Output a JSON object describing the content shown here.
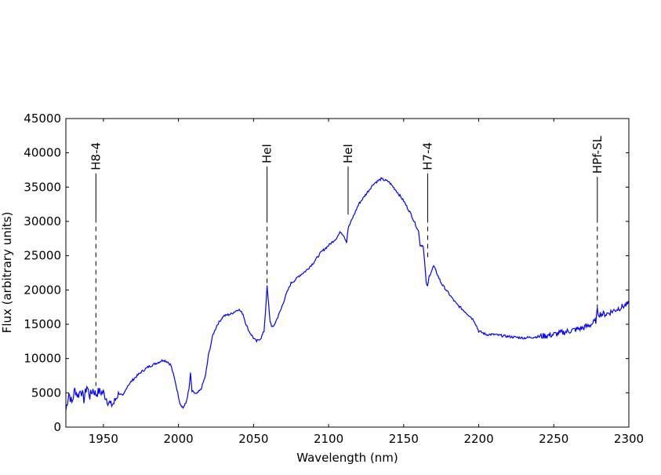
{
  "chart_data": {
    "type": "line",
    "title": "",
    "xlabel": "Wavelength (nm)",
    "ylabel": "Flux (arbitrary units)",
    "xlim": [
      1925,
      2300
    ],
    "ylim": [
      0,
      45000
    ],
    "xticks": [
      1950,
      2000,
      2050,
      2100,
      2150,
      2200,
      2250,
      2300
    ],
    "yticks": [
      0,
      5000,
      10000,
      15000,
      20000,
      25000,
      30000,
      35000,
      40000,
      45000
    ],
    "grid": false,
    "line_color": "#0000ff",
    "annotations": [
      {
        "label": "H8-4",
        "x": 1945,
        "y_line_top": 37000,
        "y_dash_top": 30500,
        "y_bottom": 6000
      },
      {
        "label": "HeI",
        "x": 2059,
        "y_line_top": 38000,
        "y_dash_top": 30500,
        "y_bottom": 21000
      },
      {
        "label": "HeI",
        "x": 2113,
        "y_line_top": 38000,
        "y_dash_top": 31000,
        "y_bottom": 31000
      },
      {
        "label": "H7-4",
        "x": 2166,
        "y_line_top": 37000,
        "y_dash_top": 30500,
        "y_bottom": 24500
      },
      {
        "label": "HPf-SL",
        "x": 2279,
        "y_line_top": 36500,
        "y_dash_top": 30500,
        "y_bottom": 17000
      }
    ],
    "series": [
      {
        "x": [
          1925,
          1927,
          1929,
          1931,
          1933,
          1935,
          1937,
          1939,
          1941,
          1943,
          1945,
          1947,
          1950,
          1953,
          1955,
          1957,
          1960,
          1963,
          1966,
          1970,
          1975,
          1980,
          1985,
          1990,
          1993,
          1995,
          1998,
          2001,
          2003,
          2005,
          2007,
          2008,
          2009,
          2012,
          2015,
          2018,
          2020,
          2023,
          2026,
          2030,
          2035,
          2040,
          2043,
          2045,
          2047,
          2050,
          2052,
          2055,
          2057,
          2058,
          2059,
          2060,
          2061,
          2062,
          2063,
          2065,
          2068,
          2072,
          2075,
          2078,
          2080,
          2085,
          2090,
          2095,
          2100,
          2105,
          2108,
          2110,
          2112,
          2113,
          2115,
          2118,
          2120,
          2125,
          2130,
          2135,
          2140,
          2145,
          2150,
          2155,
          2158,
          2160,
          2161,
          2163,
          2164,
          2165,
          2166,
          2167,
          2170,
          2175,
          2180,
          2185,
          2190,
          2195,
          2197,
          2200,
          2205,
          2210,
          2220,
          2230,
          2240,
          2250,
          2260,
          2270,
          2275,
          2278,
          2279,
          2280,
          2285,
          2290,
          2295,
          2300
        ],
        "y": [
          2500,
          5000,
          3500,
          5500,
          4500,
          5500,
          4000,
          6000,
          4500,
          5500,
          4800,
          5200,
          5000,
          3800,
          3200,
          3500,
          5000,
          4500,
          6000,
          7000,
          8000,
          8800,
          9300,
          9800,
          9500,
          9000,
          6500,
          3500,
          2800,
          3500,
          5500,
          7800,
          5200,
          4800,
          5500,
          7500,
          10500,
          13500,
          15000,
          16200,
          16500,
          17200,
          16500,
          15000,
          14000,
          13000,
          12500,
          13000,
          14000,
          17000,
          20500,
          18000,
          15500,
          14800,
          14500,
          15500,
          17000,
          19500,
          21000,
          21500,
          22000,
          22800,
          24000,
          25500,
          26500,
          27500,
          28500,
          28000,
          27000,
          29000,
          30000,
          31500,
          32500,
          34000,
          35500,
          36200,
          35800,
          34500,
          33000,
          31000,
          29500,
          28500,
          26500,
          26500,
          24000,
          21000,
          20500,
          22000,
          23500,
          21000,
          19500,
          18000,
          17000,
          16000,
          15500,
          14000,
          13500,
          13500,
          13200,
          13000,
          13200,
          13500,
          14000,
          14500,
          15000,
          15500,
          17000,
          16500,
          16500,
          17000,
          17500,
          18000
        ]
      }
    ]
  }
}
